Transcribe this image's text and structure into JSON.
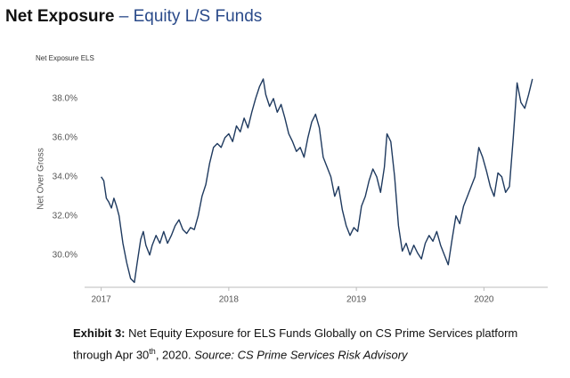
{
  "header": {
    "title": "Net Exposure",
    "title_suffix": "– Equity L/S Funds"
  },
  "caption": {
    "label": "Exhibit 3:",
    "text": "Net Equity Exposure for ELS Funds Globally on CS Prime Services platform through Apr 30",
    "sup": "th",
    "text2": ", 2020.",
    "source": "Source: CS Prime Services Risk Advisory"
  },
  "chart_data": {
    "type": "line",
    "title": "Net Exposure ELS",
    "y_label": "Net Over Gross",
    "color": "#1f3a5f",
    "grid": false,
    "xlim": [
      2016.87,
      2020.5
    ],
    "xticks": [
      2017,
      2018,
      2019,
      2020
    ],
    "ylim": [
      28.35,
      39.4
    ],
    "yticks": [
      {
        "value": 30,
        "label": "30.0%"
      },
      {
        "value": 32,
        "label": "32.0%"
      },
      {
        "value": 34,
        "label": "34.0%"
      },
      {
        "value": 36,
        "label": "36.0%"
      },
      {
        "value": 38,
        "label": "38.0%"
      }
    ],
    "x": [
      2017.0,
      2017.02,
      2017.04,
      2017.06,
      2017.08,
      2017.1,
      2017.12,
      2017.14,
      2017.17,
      2017.2,
      2017.23,
      2017.26,
      2017.28,
      2017.31,
      2017.33,
      2017.35,
      2017.38,
      2017.4,
      2017.43,
      2017.46,
      2017.49,
      2017.52,
      2017.55,
      2017.58,
      2017.61,
      2017.64,
      2017.67,
      2017.7,
      2017.73,
      2017.76,
      2017.79,
      2017.82,
      2017.85,
      2017.88,
      2017.91,
      2017.94,
      2017.97,
      2018.0,
      2018.03,
      2018.06,
      2018.09,
      2018.12,
      2018.15,
      2018.18,
      2018.21,
      2018.24,
      2018.27,
      2018.29,
      2018.32,
      2018.35,
      2018.38,
      2018.41,
      2018.44,
      2018.47,
      2018.5,
      2018.53,
      2018.56,
      2018.59,
      2018.62,
      2018.65,
      2018.68,
      2018.71,
      2018.74,
      2018.77,
      2018.8,
      2018.83,
      2018.86,
      2018.89,
      2018.92,
      2018.95,
      2018.98,
      2019.01,
      2019.04,
      2019.07,
      2019.1,
      2019.13,
      2019.16,
      2019.19,
      2019.22,
      2019.24,
      2019.27,
      2019.3,
      2019.33,
      2019.36,
      2019.39,
      2019.42,
      2019.45,
      2019.48,
      2019.51,
      2019.54,
      2019.57,
      2019.6,
      2019.63,
      2019.66,
      2019.69,
      2019.72,
      2019.75,
      2019.78,
      2019.81,
      2019.84,
      2019.87,
      2019.9,
      2019.93,
      2019.96,
      2019.99,
      2020.02,
      2020.05,
      2020.08,
      2020.11,
      2020.14,
      2020.17,
      2020.2,
      2020.23,
      2020.26,
      2020.29,
      2020.32,
      2020.35,
      2020.38
    ],
    "values": [
      34.0,
      33.8,
      32.9,
      32.7,
      32.4,
      32.9,
      32.5,
      32.0,
      30.6,
      29.6,
      28.8,
      28.6,
      29.5,
      30.8,
      31.2,
      30.5,
      30.0,
      30.5,
      31.0,
      30.6,
      31.2,
      30.6,
      31.0,
      31.5,
      31.8,
      31.3,
      31.1,
      31.4,
      31.3,
      32.0,
      33.0,
      33.6,
      34.7,
      35.5,
      35.7,
      35.5,
      36.0,
      36.2,
      35.8,
      36.6,
      36.3,
      37.0,
      36.5,
      37.3,
      38.0,
      38.6,
      39.0,
      38.2,
      37.6,
      38.0,
      37.3,
      37.7,
      37.0,
      36.2,
      35.8,
      35.3,
      35.5,
      35.0,
      36.0,
      36.8,
      37.2,
      36.5,
      35.0,
      34.5,
      34.0,
      33.0,
      33.5,
      32.3,
      31.5,
      31.0,
      31.4,
      31.2,
      32.5,
      33.0,
      33.8,
      34.4,
      34.0,
      33.2,
      34.5,
      36.2,
      35.8,
      34.0,
      31.5,
      30.2,
      30.6,
      30.0,
      30.5,
      30.1,
      29.8,
      30.6,
      31.0,
      30.7,
      31.2,
      30.5,
      30.0,
      29.5,
      30.8,
      32.0,
      31.6,
      32.5,
      33.0,
      33.5,
      34.0,
      35.5,
      35.0,
      34.3,
      33.5,
      33.0,
      34.2,
      34.0,
      33.2,
      33.5,
      36.0,
      38.8,
      37.8,
      37.5,
      38.2,
      39.0
    ]
  }
}
